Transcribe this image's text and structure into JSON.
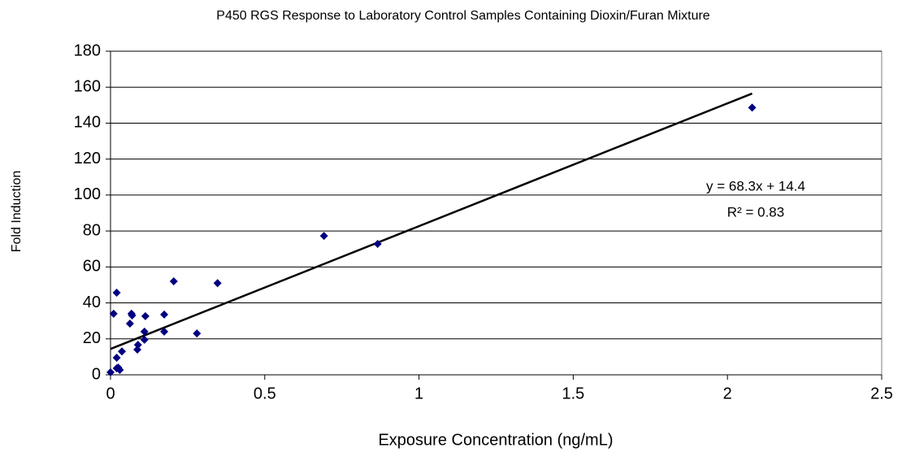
{
  "chart_data": {
    "type": "scatter",
    "title": "P450 RGS Response to Laboratory Control Samples Containing Dioxin/Furan Mixture",
    "xlabel": "Exposure Concentration (ng/mL)",
    "ylabel": "Fold Induction",
    "x": [
      0,
      0.01,
      0.02,
      0.02,
      0.025,
      0.03,
      0.02,
      0.037,
      0.063,
      0.068,
      0.07,
      0.087,
      0.089,
      0.11,
      0.11,
      0.113,
      0.174,
      0.174,
      0.205,
      0.28,
      0.347,
      0.692,
      0.866,
      2.08
    ],
    "values": [
      1.4,
      34,
      45.7,
      9.5,
      4,
      2.7,
      3.6,
      13,
      28.5,
      34,
      33,
      14,
      16.7,
      24,
      19.5,
      32.6,
      24,
      33.5,
      52,
      23,
      51,
      77.3,
      72.8,
      148.6
    ],
    "color": "#000080",
    "trendline": {
      "slope": 68.3,
      "intercept": 14.4,
      "color": "#000000"
    },
    "annotations": [
      "y = 68.3x + 14.4",
      "R² = 0.83"
    ],
    "xlim": [
      0,
      2.5
    ],
    "xticks": [
      0,
      0.5,
      1,
      1.5,
      2,
      2.5
    ],
    "ylim": [
      0,
      180
    ],
    "yticks": [
      0,
      20,
      40,
      60,
      80,
      100,
      120,
      140,
      160,
      180
    ],
    "grid": true
  }
}
